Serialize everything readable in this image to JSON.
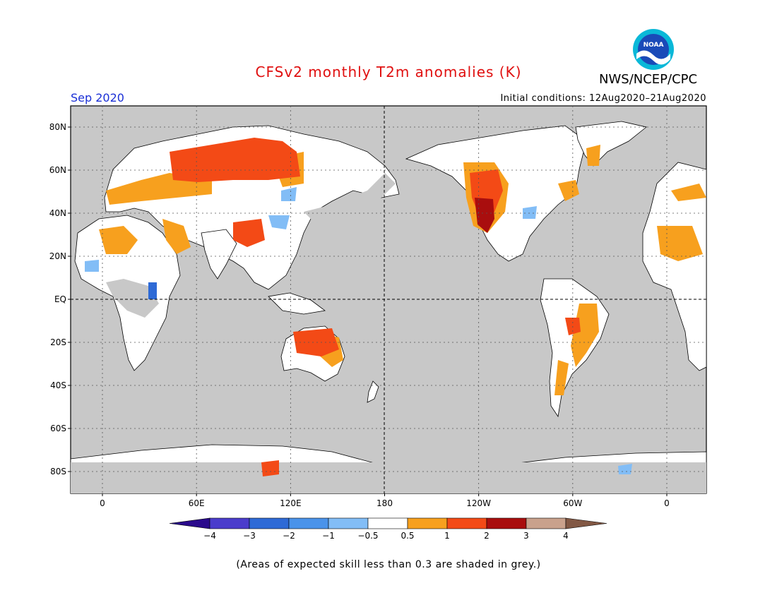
{
  "title": "CFSv2 monthly T2m anomalies (K)",
  "agency": "NWS/NCEP/CPC",
  "logo_text": "NOAA",
  "valid_month": "Sep 2020",
  "initial_conditions": "Initial conditions: 12Aug2020–21Aug2020",
  "footnote": "(Areas of expected skill less than 0.3 are shaded in grey.)",
  "map": {
    "projection": "cylindrical equidistant, 0 to 360 (centered on 180)",
    "background": "#c8c8c8",
    "lat_labels": [
      "80N",
      "60N",
      "40N",
      "20N",
      "EQ",
      "20S",
      "40S",
      "60S",
      "80S"
    ],
    "lon_labels": [
      "0",
      "60E",
      "120E",
      "180",
      "120W",
      "60W",
      "0"
    ]
  },
  "colorbar": {
    "colors": [
      "#2a0a8c",
      "#4a3ccc",
      "#2e6ad6",
      "#4a93ea",
      "#82bdf6",
      "#ffffff",
      "#f7a01e",
      "#f34a16",
      "#a90e0e",
      "#c9a18c",
      "#825844"
    ],
    "tick_labels": [
      "−4",
      "−3",
      "−2",
      "−1",
      "−0.5",
      "0.5",
      "1",
      "2",
      "3",
      "4"
    ]
  }
}
